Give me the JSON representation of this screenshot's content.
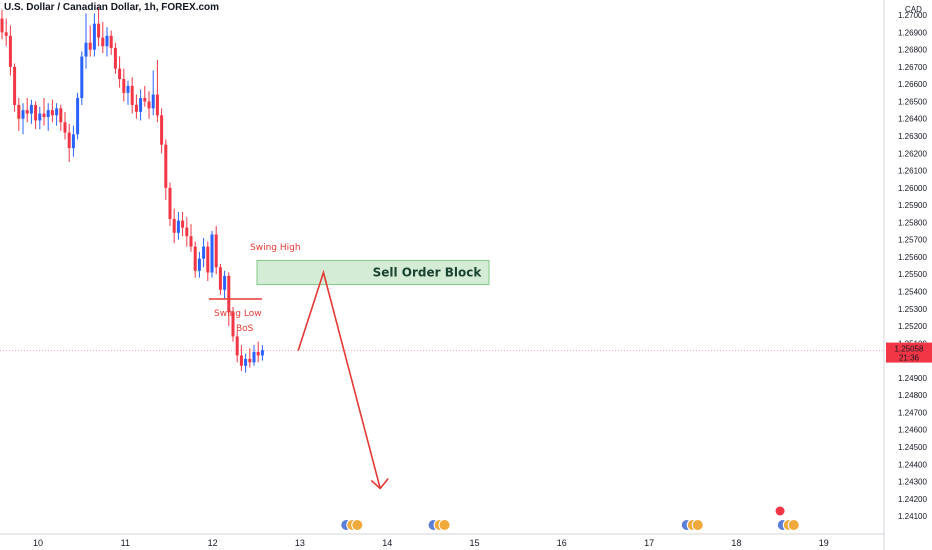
{
  "chart_data": {
    "type": "candlestick",
    "title": "U.S. Dollar / Canadian Dollar, 1h, FOREX.com",
    "currency_label": "CAD",
    "ylim": [
      1.2406,
      1.2707
    ],
    "y_ticks": [
      "1.27000",
      "1.26900",
      "1.26800",
      "1.26700",
      "1.26600",
      "1.26500",
      "1.26400",
      "1.26300",
      "1.26200",
      "1.26100",
      "1.26000",
      "1.25900",
      "1.25800",
      "1.25700",
      "1.25600",
      "1.25500",
      "1.25400",
      "1.25300",
      "1.25200",
      "1.25100",
      "1.24900",
      "1.24800",
      "1.24700",
      "1.24600",
      "1.24500",
      "1.24400",
      "1.24300",
      "1.24200",
      "1.24100"
    ],
    "x_ticks": [
      {
        "label": "10",
        "day": 10
      },
      {
        "label": "11",
        "day": 11
      },
      {
        "label": "12",
        "day": 12
      },
      {
        "label": "13",
        "day": 13
      },
      {
        "label": "14",
        "day": 14
      },
      {
        "label": "15",
        "day": 15
      },
      {
        "label": "16",
        "day": 16
      },
      {
        "label": "17",
        "day": 17
      },
      {
        "label": "18",
        "day": 18
      },
      {
        "label": "19",
        "day": 19
      }
    ],
    "current_price": {
      "value": "1.25058",
      "countdown": "21:36",
      "price": 1.25058
    },
    "candles": [
      [
        1.2698,
        1.2703,
        1.2686,
        1.269
      ],
      [
        1.269,
        1.2698,
        1.2682,
        1.2688
      ],
      [
        1.2688,
        1.2694,
        1.2665,
        1.267
      ],
      [
        1.267,
        1.2672,
        1.2644,
        1.2648
      ],
      [
        1.2648,
        1.2652,
        1.2633,
        1.264
      ],
      [
        1.264,
        1.2649,
        1.2631,
        1.2645
      ],
      [
        1.2645,
        1.2652,
        1.2638,
        1.2643
      ],
      [
        1.2643,
        1.2651,
        1.2637,
        1.2648
      ],
      [
        1.2648,
        1.265,
        1.2634,
        1.2639
      ],
      [
        1.2639,
        1.2647,
        1.2634,
        1.2643
      ],
      [
        1.2643,
        1.2652,
        1.2636,
        1.2641
      ],
      [
        1.2641,
        1.2649,
        1.2633,
        1.2645
      ],
      [
        1.2645,
        1.2651,
        1.2638,
        1.2642
      ],
      [
        1.2642,
        1.2649,
        1.2636,
        1.2646
      ],
      [
        1.2646,
        1.2648,
        1.2633,
        1.2638
      ],
      [
        1.2638,
        1.2644,
        1.2628,
        1.2632
      ],
      [
        1.2632,
        1.2637,
        1.2615,
        1.2623
      ],
      [
        1.2623,
        1.2636,
        1.2618,
        1.2631
      ],
      [
        1.2631,
        1.2655,
        1.2628,
        1.2652
      ],
      [
        1.2652,
        1.2679,
        1.2648,
        1.2676
      ],
      [
        1.2676,
        1.2701,
        1.2669,
        1.2684
      ],
      [
        1.2684,
        1.2694,
        1.2676,
        1.268
      ],
      [
        1.268,
        1.2701,
        1.2676,
        1.2695
      ],
      [
        1.2695,
        1.2705,
        1.2682,
        1.2687
      ],
      [
        1.2687,
        1.2696,
        1.2678,
        1.2682
      ],
      [
        1.2682,
        1.2693,
        1.2676,
        1.2688
      ],
      [
        1.2688,
        1.2691,
        1.2677,
        1.2681
      ],
      [
        1.2681,
        1.2684,
        1.2666,
        1.2669
      ],
      [
        1.2669,
        1.2676,
        1.2658,
        1.2663
      ],
      [
        1.2663,
        1.2669,
        1.265,
        1.2655
      ],
      [
        1.2655,
        1.2662,
        1.2648,
        1.2659
      ],
      [
        1.2659,
        1.2664,
        1.2643,
        1.2648
      ],
      [
        1.2648,
        1.2654,
        1.264,
        1.2644
      ],
      [
        1.2644,
        1.2657,
        1.2639,
        1.2652
      ],
      [
        1.2652,
        1.2659,
        1.2647,
        1.265
      ],
      [
        1.265,
        1.2656,
        1.264,
        1.2646
      ],
      [
        1.2646,
        1.2668,
        1.2642,
        1.2654
      ],
      [
        1.2654,
        1.2674,
        1.2638,
        1.2642
      ],
      [
        1.2642,
        1.2646,
        1.262,
        1.2625
      ],
      [
        1.2625,
        1.2628,
        1.2593,
        1.26
      ],
      [
        1.26,
        1.2603,
        1.2578,
        1.2582
      ],
      [
        1.2582,
        1.2588,
        1.2568,
        1.2574
      ],
      [
        1.2574,
        1.2586,
        1.257,
        1.2581
      ],
      [
        1.2581,
        1.2586,
        1.2572,
        1.2577
      ],
      [
        1.2577,
        1.2583,
        1.2566,
        1.2572
      ],
      [
        1.2572,
        1.2579,
        1.2563,
        1.2566
      ],
      [
        1.2566,
        1.2569,
        1.2548,
        1.2552
      ],
      [
        1.2552,
        1.2563,
        1.2548,
        1.2559
      ],
      [
        1.2559,
        1.2571,
        1.2554,
        1.2566
      ],
      [
        1.2566,
        1.2569,
        1.2546,
        1.2551
      ],
      [
        1.2551,
        1.2575,
        1.2548,
        1.2573
      ],
      [
        1.2573,
        1.2578,
        1.255,
        1.2554
      ],
      [
        1.2554,
        1.2556,
        1.2538,
        1.2541
      ],
      [
        1.2541,
        1.2552,
        1.2536,
        1.2549
      ],
      [
        1.2549,
        1.2551,
        1.252,
        1.2528
      ],
      [
        1.2528,
        1.2531,
        1.2511,
        1.2514
      ],
      [
        1.2514,
        1.2517,
        1.2499,
        1.2503
      ],
      [
        1.2503,
        1.2509,
        1.2494,
        1.2497
      ],
      [
        1.2497,
        1.2504,
        1.2493,
        1.2501
      ],
      [
        1.2501,
        1.2507,
        1.2496,
        1.2499
      ],
      [
        1.2499,
        1.2509,
        1.2497,
        1.2505
      ],
      [
        1.2505,
        1.2511,
        1.2499,
        1.2503
      ],
      [
        1.2503,
        1.2509,
        1.25,
        1.2506
      ]
    ],
    "annotations": {
      "swing_high": "Swing High",
      "swing_low": "Swing Low",
      "bos": "BoS",
      "order_block": {
        "label": "Sell Order Block",
        "top": 1.2558,
        "bottom": 1.2544
      },
      "projection": [
        [
          12.98,
          1.25058
        ],
        [
          13.27,
          1.2551
        ],
        [
          13.92,
          1.2426
        ]
      ]
    },
    "events": [
      13.6,
      14.6,
      17.5,
      18.6
    ],
    "grid": false
  }
}
